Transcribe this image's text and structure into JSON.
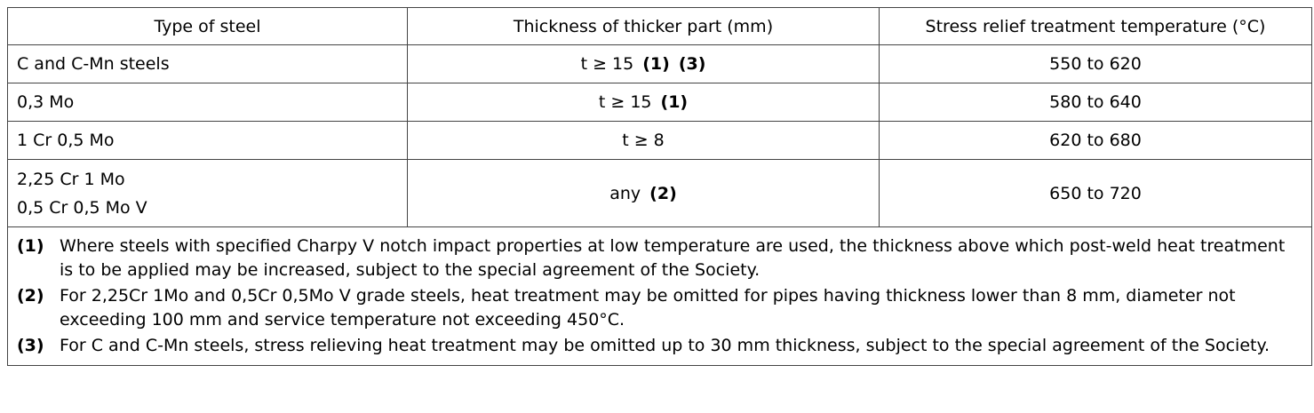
{
  "table": {
    "headers": [
      "Type of steel",
      "Thickness of thicker part (mm)",
      "Stress relief treatment temperature (°C)"
    ],
    "rows": [
      {
        "steel": [
          "C and C-Mn steels"
        ],
        "thickness": "t ≥ 15",
        "thickness_refs": [
          "(1)",
          "(3)"
        ],
        "temperature": "550 to 620"
      },
      {
        "steel": [
          "0,3 Mo"
        ],
        "thickness": "t ≥ 15",
        "thickness_refs": [
          "(1)"
        ],
        "temperature": "580 to 640"
      },
      {
        "steel": [
          "1 Cr 0,5 Mo"
        ],
        "thickness": "t ≥ 8",
        "thickness_refs": [],
        "temperature": "620 to 680"
      },
      {
        "steel": [
          "2,25 Cr 1 Mo",
          "0,5 Cr 0,5 Mo V"
        ],
        "thickness": "any",
        "thickness_refs": [
          "(2)"
        ],
        "temperature": "650 to 720"
      }
    ],
    "notes": [
      {
        "num": "(1)",
        "text": "Where steels with specified Charpy V notch impact properties at low temperature are used, the thickness above which post-weld heat treatment is to be applied may be increased, subject to the special agreement of the Society."
      },
      {
        "num": "(2)",
        "text": "For 2,25Cr 1Mo and 0,5Cr 0,5Mo V grade steels, heat treatment may be omitted for pipes having thickness lower than 8 mm, diameter not exceeding 100 mm and service temperature not exceeding 450°C."
      },
      {
        "num": "(3)",
        "text": "For C and C-Mn steels, stress relieving heat treatment may be omitted up to 30 mm thickness, subject to the special agreement of the Society."
      }
    ]
  }
}
